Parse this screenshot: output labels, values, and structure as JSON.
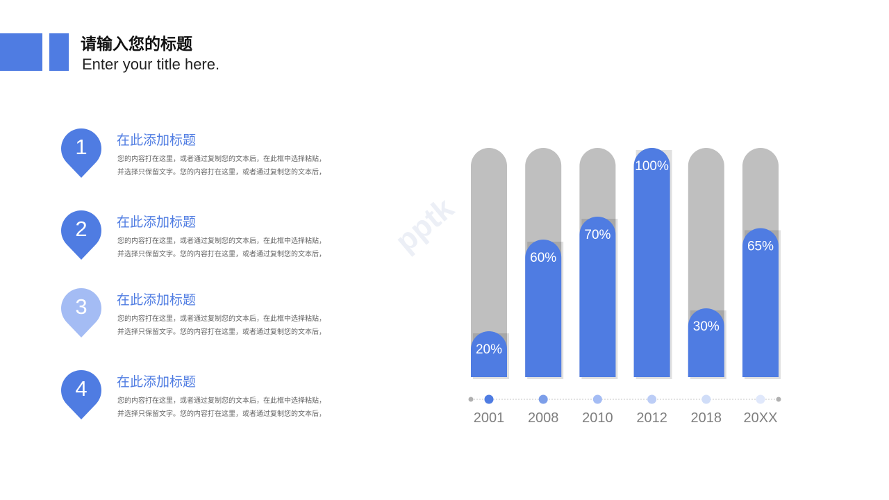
{
  "header": {
    "title_cn": "请输入您的标题",
    "title_en": "Enter your title here."
  },
  "items": [
    {
      "num": "1",
      "title": "在此添加标题",
      "line1": "您的内容打在这里，或者通过复制您的文本后，在此框中选择粘贴，",
      "line2": "并选择只保留文字。您的内容打在这里，或者通过复制您的文本后，",
      "color": "#4f7ce2"
    },
    {
      "num": "2",
      "title": "在此添加标题",
      "line1": "您的内容打在这里，或者通过复制您的文本后，在此框中选择粘贴，",
      "line2": "并选择只保留文字。您的内容打在这里，或者通过复制您的文本后，",
      "color": "#4f7ce2"
    },
    {
      "num": "3",
      "title": "在此添加标题",
      "line1": "您的内容打在这里，或者通过复制您的文本后，在此框中选择粘贴，",
      "line2": "并选择只保留文字。您的内容打在这里，或者通过复制您的文本后，",
      "color": "#a4bcf4"
    },
    {
      "num": "4",
      "title": "在此添加标题",
      "line1": "您的内容打在这里，或者通过复制您的文本后，在此框中选择粘贴，",
      "line2": "并选择只保留文字。您的内容打在这里，或者通过复制您的文本后，",
      "color": "#4f7ce2"
    }
  ],
  "watermark": "pptk",
  "colors": {
    "accent": "#4f7ce2",
    "track": "#bfbfbf",
    "axis_label": "#7f7f7f",
    "timeline_line": "#d0d0d0",
    "timeline_end": "#b0b0b0",
    "dots": [
      "#4f7ce2",
      "#7c9ee9",
      "#a4bcf4",
      "#bccdf6",
      "#d0ddf8",
      "#e0e8fb"
    ]
  },
  "chart_data": {
    "type": "bar",
    "categories": [
      "2001",
      "2008",
      "2010",
      "2012",
      "2018",
      "20XX"
    ],
    "values": [
      20,
      60,
      70,
      100,
      30,
      65
    ],
    "value_labels": [
      "20%",
      "60%",
      "70%",
      "100%",
      "30%",
      "65%"
    ],
    "ylim": [
      0,
      100
    ],
    "title": "",
    "xlabel": "",
    "ylabel": "",
    "grid": false,
    "legend": "none"
  }
}
